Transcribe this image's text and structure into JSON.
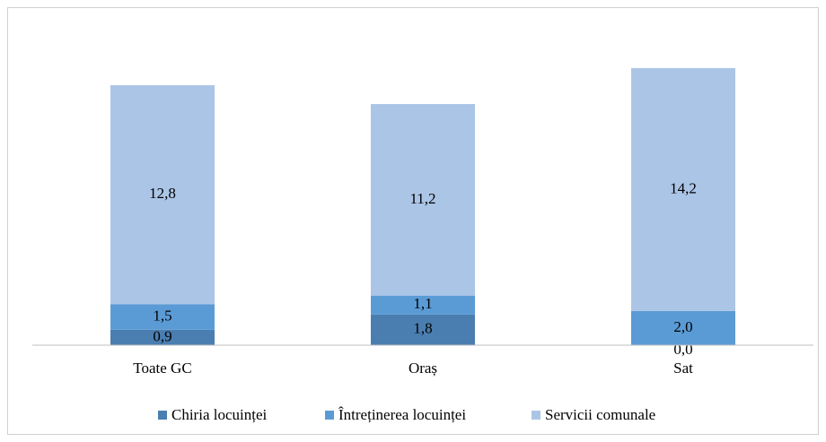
{
  "chart_data": {
    "type": "stacked_bar",
    "categories": [
      "Toate GC",
      "Oraș",
      "Sat"
    ],
    "series": [
      {
        "name": "Chiria locuinței",
        "color": "#4a7eb0",
        "values": [
          0.9,
          1.8,
          0.0
        ],
        "value_labels": [
          "0,9",
          "1,8",
          "0,0"
        ]
      },
      {
        "name": "Întreținerea locuinței",
        "color": "#5b9bd5",
        "values": [
          1.5,
          1.1,
          2.0
        ],
        "value_labels": [
          "1,5",
          "1,1",
          "2,0"
        ]
      },
      {
        "name": "Servicii comunale",
        "color": "#abc5e6",
        "values": [
          12.8,
          11.2,
          14.2
        ],
        "value_labels": [
          "12,8",
          "11,2",
          "14,2"
        ]
      }
    ],
    "legend": "bottom"
  }
}
